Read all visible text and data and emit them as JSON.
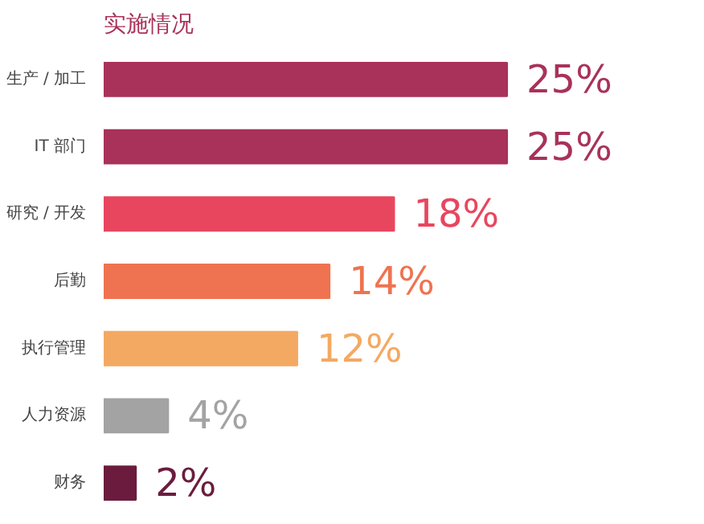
{
  "chart_data": {
    "type": "bar",
    "orientation": "horizontal",
    "title": "实施情况",
    "categories": [
      "生产 / 加工",
      "IT 部门",
      "研究 / 开发",
      "后勤",
      "执行管理",
      "人力资源",
      "财务"
    ],
    "values": [
      25,
      25,
      18,
      14,
      12,
      4,
      2
    ],
    "colors": [
      "#a8325a",
      "#a8325a",
      "#e8465e",
      "#ef7350",
      "#f4a962",
      "#a3a3a3",
      "#6b1c3e"
    ],
    "value_labels": [
      "25%",
      "25%",
      "18%",
      "14%",
      "12%",
      "4%",
      "2%"
    ],
    "grid": false
  }
}
